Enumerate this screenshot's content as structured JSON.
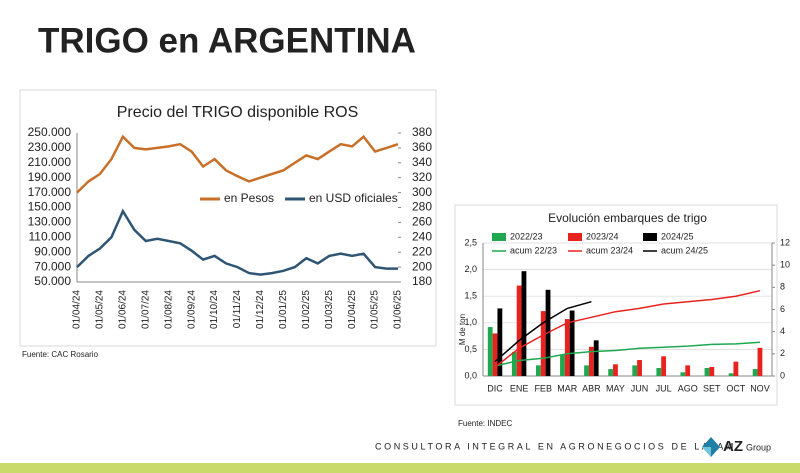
{
  "title": "TRIGO en ARGENTINA",
  "chart_data": [
    {
      "type": "line",
      "title": "Precio del TRIGO disponible ROS",
      "categories": [
        "01/04/24",
        null,
        "01/05/24",
        null,
        "01/06/24",
        null,
        "01/07/24",
        null,
        "01/08/24",
        null,
        "01/09/24",
        null,
        "01/10/24",
        null,
        "01/11/24",
        null,
        "01/12/24",
        null,
        "01/01/25",
        null,
        "01/02/25",
        null,
        "01/03/25",
        null,
        "01/04/25",
        null,
        "01/05/25",
        null,
        "01/06/25"
      ],
      "series": [
        {
          "name": "en Pesos",
          "color": "#c8702a",
          "values": [
            170000,
            185000,
            195000,
            215000,
            245000,
            230000,
            228000,
            230000,
            232000,
            235000,
            225000,
            205000,
            215000,
            200000,
            192000,
            185000,
            190000,
            195000,
            200000,
            210000,
            220000,
            215000,
            225000,
            235000,
            232000,
            245000,
            225000,
            230000,
            235000
          ]
        },
        {
          "name": "en USD oficiales",
          "color": "#2f5575",
          "axis": "y2",
          "values": [
            200,
            215,
            225,
            240,
            275,
            250,
            235,
            238,
            235,
            232,
            222,
            210,
            215,
            205,
            200,
            192,
            190,
            192,
            195,
            200,
            212,
            205,
            215,
            218,
            215,
            218,
            200,
            198,
            198
          ]
        }
      ],
      "ylim": [
        50000,
        250000
      ],
      "yticks": [
        {
          "value": 50000,
          "label": "50.000"
        },
        {
          "value": 70000,
          "label": "70.000"
        },
        {
          "value": 90000,
          "label": "90.000"
        },
        {
          "value": 110000,
          "label": "110.000"
        },
        {
          "value": 130000,
          "label": "130.000"
        },
        {
          "value": 150000,
          "label": "150.000"
        },
        {
          "value": 170000,
          "label": "170.000"
        },
        {
          "value": 190000,
          "label": "190.000"
        },
        {
          "value": 210000,
          "label": "210.000"
        },
        {
          "value": 230000,
          "label": "230.000"
        },
        {
          "value": 250000,
          "label": "250.000"
        }
      ],
      "y2lim": [
        180,
        380
      ],
      "y2ticks": [
        180,
        200,
        220,
        240,
        260,
        280,
        300,
        320,
        340,
        360,
        380
      ],
      "source": "Fuente: CAC Rosario"
    },
    {
      "type": "bar",
      "title": "Evolución embarques de trigo",
      "ylabel": "M de ton",
      "categories": [
        "DIC",
        "ENE",
        "FEB",
        "MAR",
        "ABR",
        "MAY",
        "JUN",
        "JUL",
        "AGO",
        "SET",
        "OCT",
        "NOV"
      ],
      "series": [
        {
          "name": "2022/23",
          "color": "#1fa84f",
          "values": [
            0.92,
            0.45,
            0.2,
            0.4,
            0.2,
            0.13,
            0.2,
            0.15,
            0.07,
            0.15,
            0.05,
            0.13
          ]
        },
        {
          "name": "2023/24",
          "color": "#e8231f",
          "values": [
            0.8,
            1.7,
            1.22,
            1.07,
            0.55,
            0.22,
            0.3,
            0.37,
            0.2,
            0.17,
            0.27,
            0.53
          ]
        },
        {
          "name": "2024/25",
          "color": "#000000",
          "values": [
            1.27,
            1.97,
            1.62,
            1.23,
            0.67,
            null,
            null,
            null,
            null,
            null,
            null,
            null
          ]
        },
        {
          "name": "acum 22/23",
          "color": "#1fa84f",
          "type": "line",
          "axis": "y2",
          "values": [
            0.9,
            1.4,
            1.6,
            2.0,
            2.2,
            2.3,
            2.5,
            2.6,
            2.7,
            2.85,
            2.9,
            3.05
          ]
        },
        {
          "name": "acum 23/24",
          "color": "#e8231f",
          "type": "line",
          "axis": "y2",
          "values": [
            0.8,
            2.5,
            3.7,
            4.8,
            5.3,
            5.8,
            6.1,
            6.5,
            6.7,
            6.9,
            7.2,
            7.7
          ]
        },
        {
          "name": "acum 24/25",
          "color": "#000000",
          "type": "line",
          "axis": "y2",
          "values": [
            1.3,
            3.2,
            4.8,
            6.1,
            6.7,
            null,
            null,
            null,
            null,
            null,
            null,
            null
          ]
        }
      ],
      "ylim": [
        0,
        2.5
      ],
      "yticks": [
        {
          "value": 0,
          "label": "0,0"
        },
        {
          "value": 0.5,
          "label": "0,5"
        },
        {
          "value": 1,
          "label": "1,0"
        },
        {
          "value": 1.5,
          "label": "1,5"
        },
        {
          "value": 2,
          "label": "2,0"
        },
        {
          "value": 2.5,
          "label": "2,5"
        }
      ],
      "y2lim": [
        0,
        12
      ],
      "y2ticks": [
        0,
        2,
        4,
        6,
        8,
        10,
        12
      ],
      "grid": true,
      "source": "Fuente: INDEC"
    }
  ],
  "footer": "CONSULTORA INTEGRAL EN AGRONEGOCIOS DE LATAM",
  "logo": {
    "mark": "AZ",
    "text": "Group"
  }
}
